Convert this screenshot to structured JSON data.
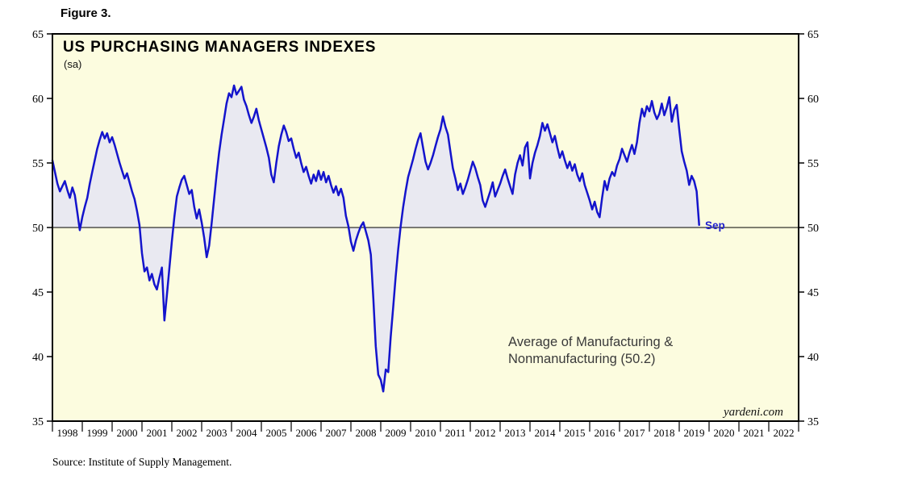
{
  "figure_label": "Figure 3.",
  "source": "Source: Institute of Supply Management.",
  "branding": "yardeni.com",
  "colors": {
    "line": "#1414cc",
    "area_fill": "#e9e9f1",
    "plot_bg": "#fcfcdf",
    "frame": "#000000",
    "reference_line": "#000000",
    "sep_label": "#2222cc",
    "annotation": "#3a3a3a"
  },
  "chart_data": {
    "type": "line",
    "title": "US PURCHASING MANAGERS INDEXES",
    "subtitle": "(sa)",
    "annotation": {
      "line1": "Average of Manufacturing &",
      "line2": "Nonmanufacturing (50.2)"
    },
    "last_point_label": "Sep",
    "reference_line": 50,
    "y_axis": {
      "min": 35,
      "max": 65,
      "tick_interval": 5,
      "ticks": [
        35,
        40,
        45,
        50,
        55,
        60,
        65
      ],
      "sides": "both"
    },
    "x_axis": {
      "start_year": 1998,
      "end_year": 2022,
      "labels": [
        "1998",
        "1999",
        "2000",
        "2001",
        "2002",
        "2003",
        "2004",
        "2005",
        "2006",
        "2007",
        "2008",
        "2009",
        "2010",
        "2011",
        "2012",
        "2013",
        "2014",
        "2015",
        "2016",
        "2017",
        "2018",
        "2019",
        "2020",
        "2021",
        "2022"
      ]
    },
    "series": [
      {
        "name": "Average of Manufacturing & Nonmanufacturing PMI",
        "frequency": "monthly",
        "start": "1998-01",
        "end": "2019-09",
        "last_value": 50.2,
        "values": [
          55.2,
          54.3,
          53.4,
          52.8,
          53.2,
          53.6,
          52.9,
          52.3,
          53.1,
          52.5,
          51.2,
          49.8,
          50.8,
          51.6,
          52.3,
          53.4,
          54.3,
          55.2,
          56.1,
          56.8,
          57.4,
          56.9,
          57.3,
          56.6,
          57.0,
          56.4,
          55.7,
          55.0,
          54.4,
          53.8,
          54.2,
          53.5,
          52.8,
          52.2,
          51.3,
          50.2,
          48.0,
          46.6,
          46.9,
          45.9,
          46.4,
          45.6,
          45.2,
          46.1,
          46.9,
          42.8,
          44.7,
          46.8,
          48.9,
          50.8,
          52.4,
          53.1,
          53.7,
          54.0,
          53.3,
          52.6,
          52.9,
          51.6,
          50.7,
          51.4,
          50.4,
          49.2,
          47.7,
          48.6,
          50.3,
          52.2,
          54.1,
          55.8,
          57.2,
          58.4,
          59.6,
          60.4,
          60.1,
          61.0,
          60.3,
          60.6,
          60.9,
          59.9,
          59.4,
          58.7,
          58.1,
          58.6,
          59.2,
          58.3,
          57.6,
          56.9,
          56.2,
          55.4,
          54.1,
          53.5,
          55.0,
          56.3,
          57.2,
          57.9,
          57.4,
          56.7,
          56.9,
          56.1,
          55.4,
          55.8,
          55.0,
          54.3,
          54.7,
          54.0,
          53.4,
          54.1,
          53.6,
          54.4,
          53.7,
          54.3,
          53.5,
          54.0,
          53.3,
          52.7,
          53.2,
          52.5,
          53.0,
          52.3,
          50.9,
          50.1,
          48.9,
          48.2,
          49.0,
          49.6,
          50.1,
          50.4,
          49.7,
          49.0,
          47.9,
          44.5,
          40.8,
          38.6,
          38.2,
          37.3,
          39.0,
          38.8,
          41.5,
          43.8,
          46.2,
          48.3,
          50.1,
          51.6,
          52.8,
          53.9,
          54.6,
          55.3,
          56.1,
          56.8,
          57.3,
          56.2,
          55.1,
          54.5,
          55.0,
          55.6,
          56.3,
          57.0,
          57.6,
          58.6,
          57.8,
          57.2,
          55.9,
          54.6,
          53.8,
          52.9,
          53.4,
          52.6,
          53.1,
          53.7,
          54.4,
          55.1,
          54.6,
          53.9,
          53.3,
          52.1,
          51.6,
          52.2,
          52.8,
          53.5,
          52.4,
          52.9,
          53.4,
          54.0,
          54.5,
          53.8,
          53.2,
          52.6,
          54.1,
          55.0,
          55.6,
          54.8,
          56.2,
          56.6,
          53.8,
          55.0,
          55.8,
          56.4,
          57.1,
          58.1,
          57.5,
          58.0,
          57.3,
          56.6,
          57.1,
          56.2,
          55.4,
          55.9,
          55.2,
          54.6,
          55.1,
          54.4,
          54.9,
          54.1,
          53.6,
          54.2,
          53.3,
          52.7,
          52.1,
          51.4,
          52.0,
          51.2,
          50.8,
          52.3,
          53.6,
          52.9,
          53.8,
          54.3,
          54.0,
          54.8,
          55.3,
          56.1,
          55.6,
          55.1,
          55.8,
          56.4,
          55.7,
          56.6,
          58.1,
          59.2,
          58.6,
          59.4,
          59.0,
          59.8,
          58.9,
          58.4,
          58.8,
          59.6,
          58.7,
          59.3,
          60.1,
          58.2,
          59.1,
          59.5,
          57.6,
          55.9,
          55.1,
          54.4,
          53.3,
          54.0,
          53.6,
          52.8,
          50.2
        ]
      }
    ]
  }
}
